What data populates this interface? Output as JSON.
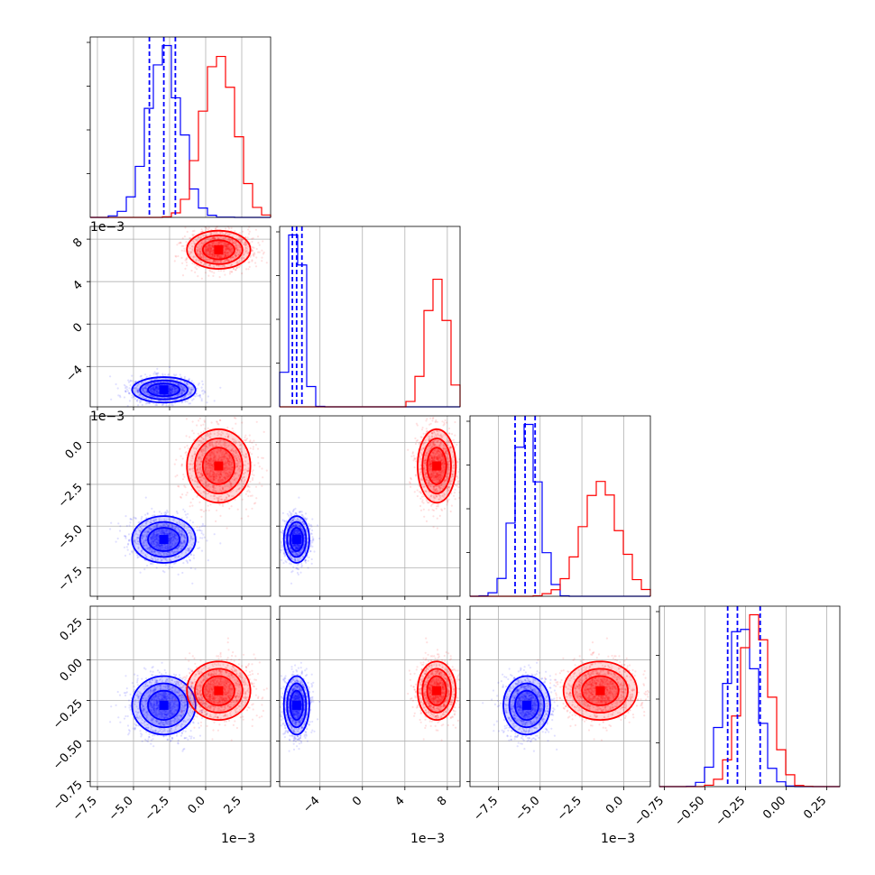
{
  "chart_data": {
    "type": "corner",
    "series": [
      {
        "name": "",
        "color": "#0000ff",
        "mean": [
          -0.0029,
          -0.0062,
          -0.0058,
          -0.28
        ],
        "sd": [
          0.0011,
          0.0006,
          0.0007,
          0.09
        ],
        "quantiles": [
          [
            -0.0039,
            -0.0029,
            -0.0021
          ],
          [
            -0.0066,
            -0.0062,
            -0.0057
          ],
          [
            -0.0065,
            -0.0059,
            -0.0053
          ],
          [
            -0.36,
            -0.3,
            -0.16
          ]
        ]
      },
      {
        "name": "",
        "color": "#ff0000",
        "mean": [
          0.0009,
          0.007,
          -0.0014,
          -0.19
        ],
        "sd": [
          0.0011,
          0.0009,
          0.0011,
          0.09
        ]
      }
    ],
    "params": [
      {
        "range": [
          -0.008,
          0.0045
        ],
        "ticks": [
          -0.0075,
          -0.005,
          -0.0025,
          0,
          0.0025
        ],
        "tick_labels": [
          "−7.5",
          "−5.0",
          "−2.5",
          "0.0",
          "2.5"
        ],
        "offset": "1e−3"
      },
      {
        "range": [
          -0.0078,
          0.0092
        ],
        "ticks": [
          -0.004,
          0,
          0.004,
          0.008
        ],
        "tick_labels": [
          "−4",
          "0",
          "4",
          "8"
        ],
        "offset": "1e−3"
      },
      {
        "range": [
          -0.0092,
          0.0016
        ],
        "ticks": [
          -0.0075,
          -0.005,
          -0.0025,
          0
        ],
        "tick_labels": [
          "−7.5",
          "−5.0",
          "−2.5",
          "0.0"
        ],
        "offset": "1e−3"
      },
      {
        "range": [
          -0.78,
          0.33
        ],
        "ticks": [
          -0.75,
          -0.5,
          -0.25,
          0,
          0.25
        ],
        "tick_labels": [
          "−0.75",
          "−0.50",
          "−0.25",
          "0.00",
          "0.25"
        ],
        "offset": ""
      }
    ],
    "grid": true,
    "legend": "none"
  }
}
